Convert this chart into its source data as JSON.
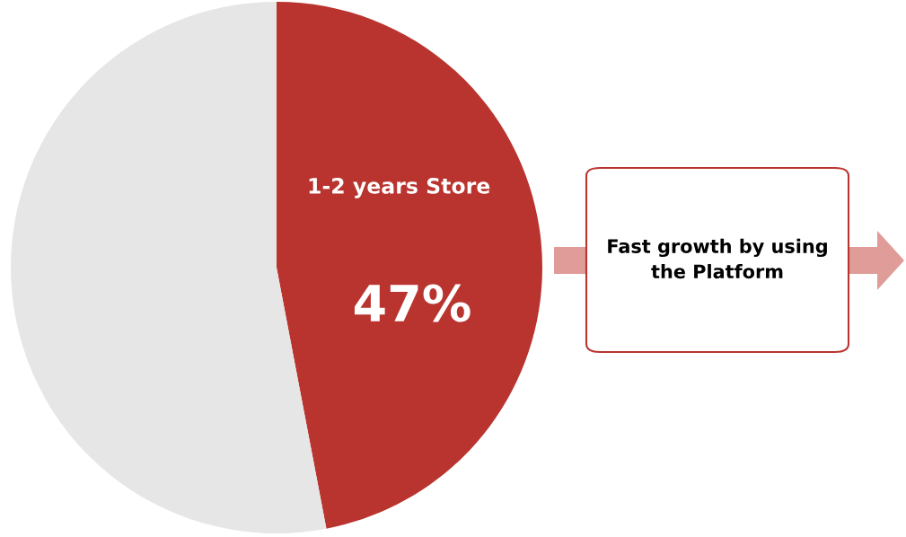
{
  "chart_data": {
    "type": "pie",
    "categories": [
      "1-2 years Store",
      null
    ],
    "values": [
      47,
      53
    ],
    "colors": [
      "#b9342f",
      "#e6e6e6"
    ],
    "value_labels": [
      "47%",
      null
    ],
    "annotations": [
      "Fast growth by using the Platform"
    ]
  }
}
